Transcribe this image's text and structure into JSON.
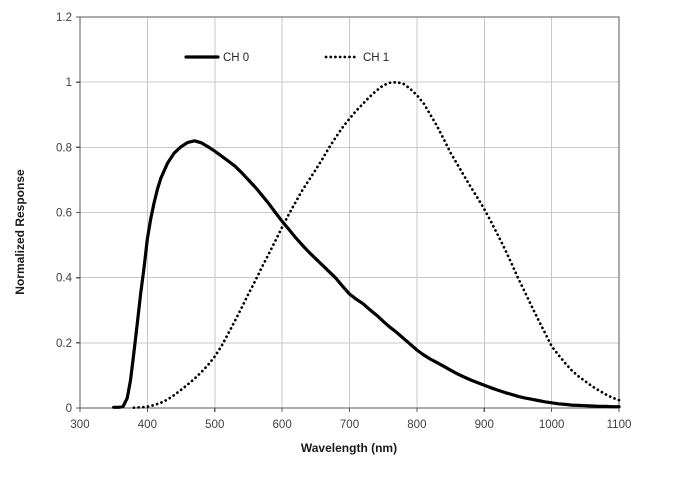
{
  "chart_data": {
    "type": "line",
    "title": "",
    "xlabel": "Wavelength (nm)",
    "ylabel": "Normalized Response",
    "xlim": [
      300,
      1100
    ],
    "ylim": [
      0,
      1.2
    ],
    "x_ticks": [
      300,
      400,
      500,
      600,
      700,
      800,
      900,
      1000,
      1100
    ],
    "x_tick_labels": [
      "300",
      "400",
      "500",
      "600",
      "700",
      "800",
      "900",
      "1000",
      "1100"
    ],
    "y_ticks": [
      0,
      0.2,
      0.4,
      0.6,
      0.8,
      1.0,
      1.2
    ],
    "y_tick_labels": [
      "0",
      "0.2",
      "0.4",
      "0.6",
      "0.8",
      "1",
      "1.2"
    ],
    "grid": true,
    "legend_position": "top-inside",
    "background_color": "#ffffff",
    "gridline_color": "#c9c9c9",
    "axis_border_color": "#595959",
    "series": [
      {
        "name": "CH 0",
        "style": "solid",
        "color": "#000000",
        "points": [
          [
            350,
            0.002
          ],
          [
            358,
            0.002
          ],
          [
            364,
            0.005
          ],
          [
            370,
            0.03
          ],
          [
            375,
            0.085
          ],
          [
            380,
            0.17
          ],
          [
            385,
            0.26
          ],
          [
            390,
            0.35
          ],
          [
            395,
            0.43
          ],
          [
            400,
            0.52
          ],
          [
            405,
            0.58
          ],
          [
            410,
            0.63
          ],
          [
            415,
            0.672
          ],
          [
            420,
            0.705
          ],
          [
            430,
            0.752
          ],
          [
            440,
            0.783
          ],
          [
            450,
            0.802
          ],
          [
            460,
            0.815
          ],
          [
            470,
            0.82
          ],
          [
            480,
            0.814
          ],
          [
            490,
            0.802
          ],
          [
            500,
            0.788
          ],
          [
            510,
            0.773
          ],
          [
            520,
            0.758
          ],
          [
            530,
            0.742
          ],
          [
            540,
            0.722
          ],
          [
            550,
            0.7
          ],
          [
            560,
            0.678
          ],
          [
            570,
            0.653
          ],
          [
            580,
            0.628
          ],
          [
            590,
            0.6
          ],
          [
            600,
            0.573
          ],
          [
            610,
            0.548
          ],
          [
            620,
            0.523
          ],
          [
            630,
            0.5
          ],
          [
            640,
            0.478
          ],
          [
            650,
            0.458
          ],
          [
            660,
            0.438
          ],
          [
            670,
            0.418
          ],
          [
            680,
            0.398
          ],
          [
            690,
            0.373
          ],
          [
            700,
            0.35
          ],
          [
            710,
            0.334
          ],
          [
            720,
            0.32
          ],
          [
            730,
            0.302
          ],
          [
            740,
            0.285
          ],
          [
            750,
            0.266
          ],
          [
            760,
            0.248
          ],
          [
            770,
            0.232
          ],
          [
            780,
            0.214
          ],
          [
            790,
            0.196
          ],
          [
            800,
            0.178
          ],
          [
            810,
            0.163
          ],
          [
            820,
            0.15
          ],
          [
            830,
            0.139
          ],
          [
            840,
            0.128
          ],
          [
            850,
            0.116
          ],
          [
            860,
            0.105
          ],
          [
            870,
            0.095
          ],
          [
            880,
            0.086
          ],
          [
            890,
            0.078
          ],
          [
            900,
            0.07
          ],
          [
            910,
            0.062
          ],
          [
            920,
            0.055
          ],
          [
            930,
            0.048
          ],
          [
            940,
            0.042
          ],
          [
            950,
            0.036
          ],
          [
            960,
            0.031
          ],
          [
            970,
            0.027
          ],
          [
            980,
            0.023
          ],
          [
            990,
            0.019
          ],
          [
            1000,
            0.016
          ],
          [
            1010,
            0.013
          ],
          [
            1020,
            0.011
          ],
          [
            1030,
            0.009
          ],
          [
            1040,
            0.008
          ],
          [
            1050,
            0.007
          ],
          [
            1060,
            0.006
          ],
          [
            1070,
            0.005
          ],
          [
            1080,
            0.005
          ],
          [
            1090,
            0.004
          ],
          [
            1100,
            0.004
          ]
        ]
      },
      {
        "name": "CH 1",
        "style": "dotted",
        "color": "#000000",
        "points": [
          [
            380,
            0.001
          ],
          [
            390,
            0.002
          ],
          [
            400,
            0.004
          ],
          [
            410,
            0.009
          ],
          [
            420,
            0.016
          ],
          [
            430,
            0.026
          ],
          [
            440,
            0.04
          ],
          [
            450,
            0.056
          ],
          [
            460,
            0.072
          ],
          [
            470,
            0.09
          ],
          [
            480,
            0.11
          ],
          [
            490,
            0.132
          ],
          [
            500,
            0.158
          ],
          [
            510,
            0.19
          ],
          [
            520,
            0.228
          ],
          [
            530,
            0.268
          ],
          [
            540,
            0.308
          ],
          [
            550,
            0.35
          ],
          [
            560,
            0.39
          ],
          [
            570,
            0.432
          ],
          [
            580,
            0.472
          ],
          [
            590,
            0.513
          ],
          [
            600,
            0.555
          ],
          [
            610,
            0.595
          ],
          [
            620,
            0.632
          ],
          [
            630,
            0.668
          ],
          [
            640,
            0.7
          ],
          [
            650,
            0.732
          ],
          [
            660,
            0.765
          ],
          [
            670,
            0.8
          ],
          [
            680,
            0.832
          ],
          [
            690,
            0.862
          ],
          [
            700,
            0.888
          ],
          [
            710,
            0.912
          ],
          [
            720,
            0.934
          ],
          [
            730,
            0.955
          ],
          [
            740,
            0.974
          ],
          [
            750,
            0.99
          ],
          [
            760,
            0.998
          ],
          [
            770,
            1.0
          ],
          [
            780,
            0.995
          ],
          [
            790,
            0.98
          ],
          [
            800,
            0.96
          ],
          [
            810,
            0.935
          ],
          [
            820,
            0.9
          ],
          [
            830,
            0.865
          ],
          [
            840,
            0.825
          ],
          [
            850,
            0.783
          ],
          [
            860,
            0.748
          ],
          [
            870,
            0.713
          ],
          [
            880,
            0.678
          ],
          [
            890,
            0.645
          ],
          [
            900,
            0.61
          ],
          [
            910,
            0.572
          ],
          [
            920,
            0.532
          ],
          [
            930,
            0.49
          ],
          [
            940,
            0.446
          ],
          [
            950,
            0.4
          ],
          [
            960,
            0.357
          ],
          [
            970,
            0.314
          ],
          [
            980,
            0.272
          ],
          [
            990,
            0.231
          ],
          [
            1000,
            0.19
          ],
          [
            1010,
            0.163
          ],
          [
            1020,
            0.138
          ],
          [
            1030,
            0.115
          ],
          [
            1040,
            0.097
          ],
          [
            1050,
            0.082
          ],
          [
            1060,
            0.067
          ],
          [
            1070,
            0.054
          ],
          [
            1080,
            0.042
          ],
          [
            1090,
            0.032
          ],
          [
            1100,
            0.024
          ]
        ]
      }
    ]
  }
}
